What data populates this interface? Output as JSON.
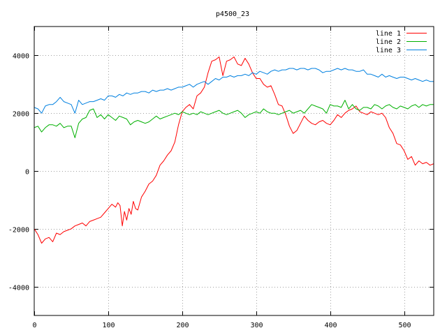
{
  "chart_data": {
    "type": "line",
    "title": "p4500_23",
    "xlim": [
      0,
      540
    ],
    "ylim": [
      -5000,
      5000
    ],
    "xticks": [
      0,
      100,
      200,
      300,
      400,
      500
    ],
    "yticks": [
      -4000,
      -2000,
      0,
      2000,
      4000
    ],
    "grid": true,
    "legend_position": "top-right",
    "series": [
      {
        "name": "line 1",
        "color": "#ff0000",
        "x": [
          0,
          5,
          10,
          15,
          20,
          25,
          30,
          35,
          40,
          45,
          50,
          55,
          60,
          65,
          70,
          75,
          80,
          85,
          90,
          95,
          100,
          105,
          110,
          113,
          116,
          119,
          122,
          125,
          128,
          131,
          134,
          137,
          140,
          145,
          150,
          155,
          160,
          165,
          170,
          175,
          180,
          185,
          190,
          195,
          200,
          205,
          210,
          215,
          220,
          225,
          230,
          235,
          240,
          245,
          250,
          255,
          260,
          265,
          270,
          275,
          280,
          285,
          290,
          295,
          300,
          305,
          310,
          315,
          320,
          325,
          330,
          335,
          340,
          345,
          350,
          355,
          360,
          365,
          370,
          375,
          380,
          385,
          390,
          395,
          400,
          405,
          410,
          415,
          420,
          425,
          430,
          435,
          440,
          445,
          450,
          455,
          460,
          465,
          470,
          475,
          480,
          485,
          490,
          495,
          500,
          505,
          510,
          515,
          520,
          525,
          530,
          535,
          540
        ],
        "y": [
          -2000,
          -2200,
          -2500,
          -2350,
          -2300,
          -2450,
          -2150,
          -2200,
          -2100,
          -2050,
          -2000,
          -1900,
          -1850,
          -1800,
          -1900,
          -1750,
          -1700,
          -1650,
          -1600,
          -1450,
          -1300,
          -1150,
          -1250,
          -1100,
          -1200,
          -1900,
          -1400,
          -1700,
          -1300,
          -1500,
          -1050,
          -1300,
          -1350,
          -900,
          -700,
          -450,
          -350,
          -150,
          200,
          350,
          550,
          700,
          1000,
          1600,
          2050,
          2200,
          2300,
          2150,
          2600,
          2700,
          2900,
          3400,
          3800,
          3850,
          3950,
          3300,
          3800,
          3850,
          3950,
          3700,
          3650,
          3900,
          3700,
          3400,
          3200,
          3200,
          3000,
          2900,
          2950,
          2650,
          2300,
          2250,
          1950,
          1550,
          1300,
          1400,
          1650,
          1900,
          1750,
          1650,
          1600,
          1700,
          1750,
          1650,
          1600,
          1750,
          1950,
          1850,
          2000,
          2100,
          2150,
          2250,
          2050,
          2000,
          1950,
          2050,
          2000,
          1950,
          2000,
          1850,
          1500,
          1300,
          950,
          900,
          700,
          400,
          500,
          200,
          350,
          250,
          300,
          200,
          250
        ]
      },
      {
        "name": "line 2",
        "color": "#00b000",
        "x": [
          0,
          5,
          10,
          15,
          20,
          25,
          30,
          35,
          40,
          45,
          50,
          55,
          60,
          65,
          70,
          75,
          80,
          85,
          90,
          95,
          100,
          105,
          110,
          115,
          120,
          125,
          130,
          135,
          140,
          145,
          150,
          155,
          160,
          165,
          170,
          175,
          180,
          185,
          190,
          195,
          200,
          205,
          210,
          215,
          220,
          225,
          230,
          235,
          240,
          245,
          250,
          255,
          260,
          265,
          270,
          275,
          280,
          285,
          290,
          295,
          300,
          305,
          310,
          315,
          320,
          325,
          330,
          335,
          340,
          345,
          350,
          355,
          360,
          365,
          370,
          375,
          380,
          385,
          390,
          395,
          400,
          405,
          410,
          415,
          420,
          425,
          430,
          435,
          440,
          445,
          450,
          455,
          460,
          465,
          470,
          475,
          480,
          485,
          490,
          495,
          500,
          505,
          510,
          515,
          520,
          525,
          530,
          535,
          540
        ],
        "y": [
          1500,
          1550,
          1350,
          1500,
          1600,
          1600,
          1550,
          1650,
          1500,
          1550,
          1550,
          1150,
          1650,
          1800,
          1850,
          2100,
          2150,
          1850,
          1950,
          1800,
          1950,
          1850,
          1750,
          1900,
          1850,
          1800,
          1600,
          1700,
          1750,
          1700,
          1650,
          1700,
          1800,
          1900,
          1800,
          1850,
          1900,
          1950,
          2000,
          1950,
          2050,
          2000,
          1950,
          2000,
          1950,
          2050,
          2000,
          1950,
          2000,
          2050,
          2100,
          2000,
          1950,
          2000,
          2050,
          2100,
          2000,
          1850,
          1950,
          2000,
          2050,
          2000,
          2150,
          2050,
          2000,
          2000,
          1950,
          2000,
          2050,
          2100,
          2000,
          2050,
          2100,
          2000,
          2150,
          2300,
          2250,
          2200,
          2150,
          2000,
          2300,
          2250,
          2250,
          2200,
          2450,
          2150,
          2300,
          2150,
          2100,
          2200,
          2200,
          2150,
          2300,
          2250,
          2150,
          2250,
          2300,
          2200,
          2150,
          2250,
          2200,
          2150,
          2250,
          2300,
          2200,
          2300,
          2250,
          2300,
          2300
        ],
        "ys_note": ""
      },
      {
        "name": "line 3",
        "color": "#0080e0",
        "x": [
          0,
          5,
          10,
          15,
          20,
          25,
          30,
          35,
          40,
          45,
          50,
          55,
          60,
          65,
          70,
          75,
          80,
          85,
          90,
          95,
          100,
          105,
          110,
          115,
          120,
          125,
          130,
          135,
          140,
          145,
          150,
          155,
          160,
          165,
          170,
          175,
          180,
          185,
          190,
          195,
          200,
          205,
          210,
          215,
          220,
          225,
          230,
          235,
          240,
          245,
          250,
          255,
          260,
          265,
          270,
          275,
          280,
          285,
          290,
          295,
          300,
          305,
          310,
          315,
          320,
          325,
          330,
          335,
          340,
          345,
          350,
          355,
          360,
          365,
          370,
          375,
          380,
          385,
          390,
          395,
          400,
          405,
          410,
          415,
          420,
          425,
          430,
          435,
          440,
          445,
          450,
          455,
          460,
          465,
          470,
          475,
          480,
          485,
          490,
          495,
          500,
          505,
          510,
          515,
          520,
          525,
          530,
          535,
          540
        ],
        "y": [
          2200,
          2150,
          2000,
          2250,
          2300,
          2300,
          2400,
          2550,
          2400,
          2350,
          2300,
          2000,
          2450,
          2300,
          2350,
          2400,
          2400,
          2450,
          2500,
          2450,
          2600,
          2600,
          2550,
          2650,
          2600,
          2700,
          2650,
          2700,
          2700,
          2750,
          2750,
          2700,
          2800,
          2750,
          2800,
          2800,
          2850,
          2800,
          2850,
          2900,
          2900,
          2950,
          3000,
          2900,
          3000,
          3050,
          3100,
          3000,
          3100,
          3200,
          3150,
          3250,
          3250,
          3300,
          3250,
          3300,
          3300,
          3350,
          3300,
          3400,
          3350,
          3450,
          3400,
          3350,
          3450,
          3500,
          3450,
          3500,
          3500,
          3550,
          3550,
          3500,
          3550,
          3550,
          3500,
          3550,
          3550,
          3500,
          3400,
          3450,
          3450,
          3500,
          3550,
          3500,
          3550,
          3500,
          3500,
          3450,
          3450,
          3500,
          3350,
          3350,
          3300,
          3250,
          3350,
          3250,
          3300,
          3250,
          3200,
          3250,
          3250,
          3200,
          3150,
          3200,
          3150,
          3100,
          3150,
          3100,
          3100
        ]
      }
    ]
  }
}
